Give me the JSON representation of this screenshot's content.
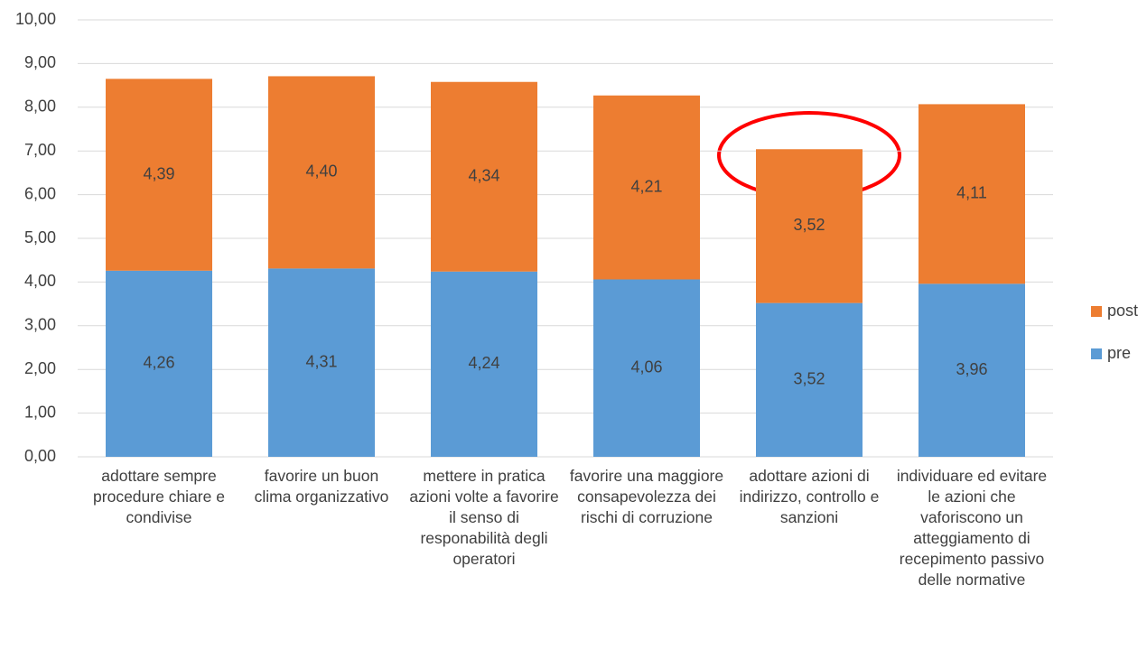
{
  "chart_data": {
    "type": "stacked_bar",
    "categories": [
      "adottare sempre procedure chiare e condivise",
      "favorire un buon clima organizzativo",
      "mettere in pratica azioni volte a favorire il senso di responabilità degli operatori",
      "favorire una maggiore consapevolezza dei rischi di corruzione",
      "adottare azioni di indirizzo, controllo e sanzioni",
      "individuare ed evitare le azioni che vaforiscono un atteggiamento di recepimento passivo delle normative"
    ],
    "series": [
      {
        "name": "pre",
        "color": "#5b9bd5",
        "values": [
          4.26,
          4.31,
          4.24,
          4.06,
          3.52,
          3.96
        ],
        "value_labels": [
          "4,26",
          "4,31",
          "4,24",
          "4,06",
          "3,52",
          "3,96"
        ]
      },
      {
        "name": "post",
        "color": "#ed7d31",
        "values": [
          4.39,
          4.4,
          4.34,
          4.21,
          3.52,
          4.11
        ],
        "value_labels": [
          "4,39",
          "4,40",
          "4,34",
          "4,21",
          "3,52",
          "4,11"
        ]
      }
    ],
    "ylim": [
      0,
      10
    ],
    "yticks": [
      {
        "value": 0,
        "label": "0,00"
      },
      {
        "value": 1,
        "label": "1,00"
      },
      {
        "value": 2,
        "label": "2,00"
      },
      {
        "value": 3,
        "label": "3,00"
      },
      {
        "value": 4,
        "label": "4,00"
      },
      {
        "value": 5,
        "label": "5,00"
      },
      {
        "value": 6,
        "label": "6,00"
      },
      {
        "value": 7,
        "label": "7,00"
      },
      {
        "value": 8,
        "label": "8,00"
      },
      {
        "value": 9,
        "label": "9,00"
      },
      {
        "value": 10,
        "label": "10,00"
      }
    ],
    "grid": true,
    "legend": "right"
  }
}
